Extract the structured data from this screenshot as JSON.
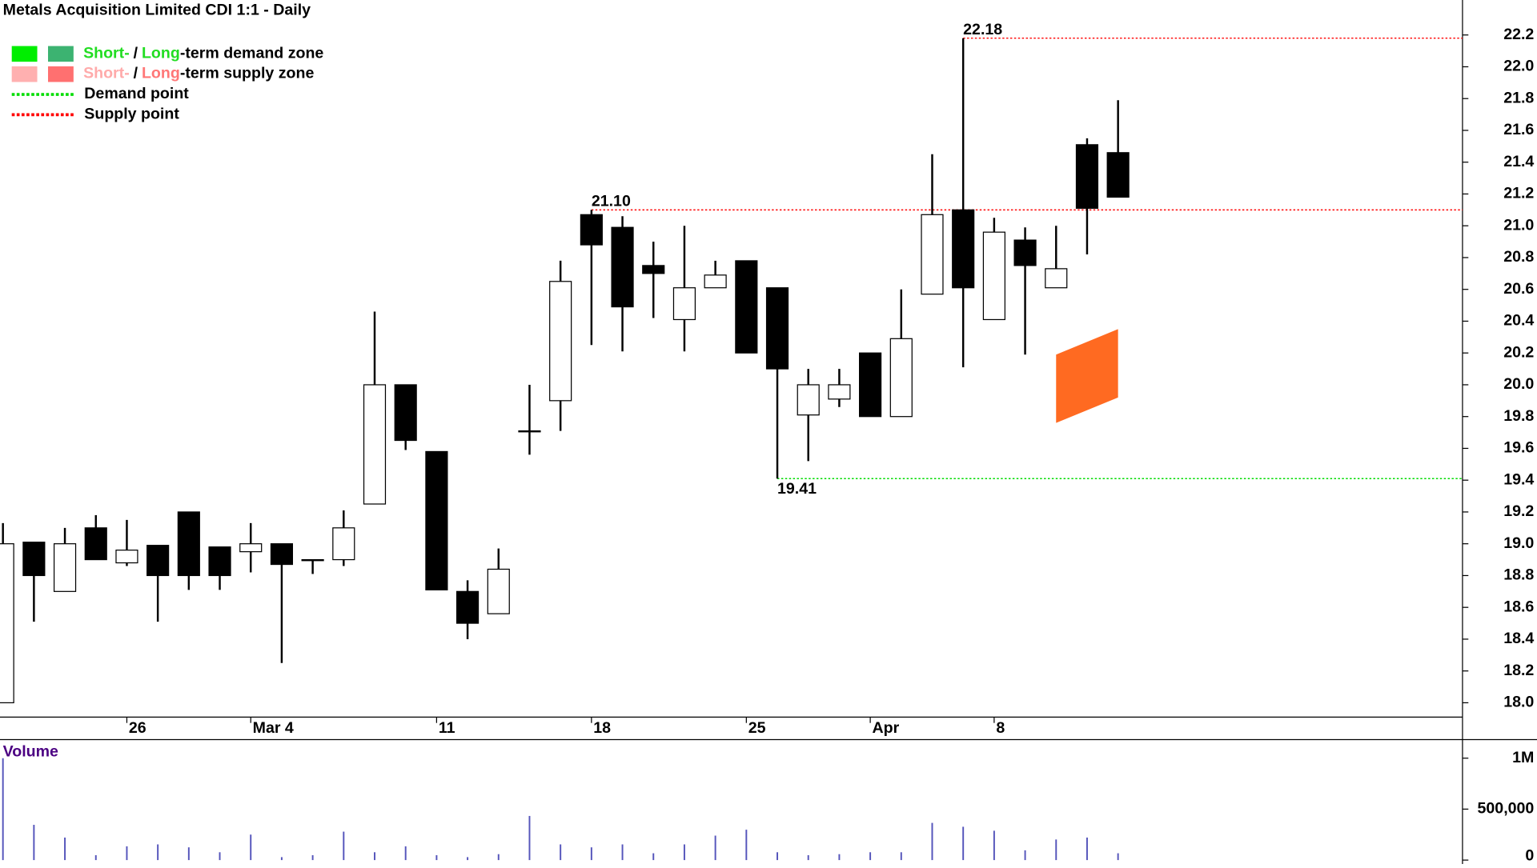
{
  "chart_data": {
    "type": "candlestick",
    "title": "Metals Acquisition Limited CDI 1:1 - Daily",
    "categories": [
      null,
      null,
      null,
      null,
      "26",
      null,
      null,
      null,
      "Mar 4",
      null,
      null,
      null,
      null,
      null,
      "11",
      null,
      null,
      null,
      null,
      "18",
      null,
      null,
      null,
      null,
      "25",
      null,
      null,
      null,
      "Apr",
      null,
      null,
      null,
      "8",
      null,
      null,
      null,
      null
    ],
    "open": [
      18.0,
      19.01,
      18.7,
      19.1,
      18.88,
      18.99,
      19.2,
      18.98,
      18.95,
      19.0,
      18.9,
      18.9,
      19.25,
      20.0,
      19.58,
      18.7,
      18.56,
      19.71,
      19.9,
      21.07,
      20.99,
      20.75,
      20.41,
      20.61,
      20.78,
      20.61,
      19.81,
      19.91,
      20.2,
      19.8,
      20.57,
      21.1,
      20.41,
      20.91,
      20.61,
      21.51,
      21.46
    ],
    "high": [
      19.13,
      19.01,
      19.1,
      19.18,
      19.15,
      18.99,
      19.2,
      18.98,
      19.13,
      19.0,
      18.9,
      19.21,
      20.46,
      20.0,
      19.58,
      18.77,
      18.97,
      20.0,
      20.78,
      21.1,
      21.06,
      20.9,
      21.0,
      20.78,
      20.78,
      20.61,
      20.1,
      20.1,
      20.2,
      20.6,
      21.45,
      22.18,
      21.05,
      20.99,
      21.0,
      21.55,
      21.79
    ],
    "low": [
      18.0,
      18.51,
      18.7,
      18.9,
      18.86,
      18.51,
      18.71,
      18.71,
      18.82,
      18.25,
      18.81,
      18.86,
      19.25,
      19.59,
      18.71,
      18.4,
      18.56,
      19.56,
      19.71,
      20.25,
      20.21,
      20.42,
      20.21,
      20.61,
      20.2,
      19.41,
      19.52,
      19.86,
      19.8,
      19.8,
      20.57,
      20.11,
      20.41,
      20.19,
      20.61,
      20.82,
      21.18
    ],
    "close": [
      19.0,
      18.8,
      19.0,
      18.9,
      18.96,
      18.8,
      18.8,
      18.8,
      19.0,
      18.87,
      18.9,
      19.1,
      20.0,
      19.65,
      18.71,
      18.5,
      18.84,
      19.71,
      20.65,
      20.88,
      20.49,
      20.7,
      20.61,
      20.69,
      20.2,
      20.1,
      20.0,
      20.0,
      19.8,
      20.29,
      21.07,
      20.61,
      20.96,
      20.75,
      20.73,
      21.11,
      21.18
    ],
    "ylim": [
      17.91,
      22.42
    ],
    "yticks": [
      {
        "value": 18.0,
        "label": "18.0"
      },
      18.2,
      18.4,
      18.6,
      18.8,
      {
        "value": 19.0,
        "label": "19.0"
      },
      19.2,
      19.4,
      19.6,
      19.8,
      {
        "value": 20.0,
        "label": "20.0"
      },
      20.2,
      20.4,
      20.6,
      20.8,
      {
        "value": 21.0,
        "label": "21.0"
      },
      21.2,
      21.4,
      21.6,
      21.8,
      {
        "value": 22.0,
        "label": "22.0"
      },
      22.2
    ],
    "levels": [
      {
        "text": "22.18",
        "value": 22.18,
        "color": "#ff0000"
      },
      {
        "text": "21.10",
        "value": 21.1,
        "color": "#ff0000"
      },
      {
        "text": "19.41",
        "value": 19.41,
        "color": "#00dd00"
      }
    ],
    "zones": [
      {
        "color": "#ff6a21",
        "points": [
          [
            34,
            20.19
          ],
          [
            36,
            20.35
          ],
          [
            36,
            19.92
          ],
          [
            34,
            19.76
          ]
        ]
      }
    ],
    "legend": [
      {
        "swatches": [
          "#00ee00",
          "#3cb371"
        ],
        "parts": [
          {
            "text": "Short-",
            "color": "#22dd22"
          },
          {
            "text": "/",
            "color": "#000000"
          },
          {
            "text": "Long",
            "color": "#22dd22"
          },
          {
            "text": "-term demand zone",
            "color": "#000000"
          }
        ]
      },
      {
        "swatches": [
          "#ffb0b0",
          "#ff7070"
        ],
        "parts": [
          {
            "text": "Short-",
            "color": "#ffaaaa"
          },
          {
            "text": "/",
            "color": "#000000"
          },
          {
            "text": "Long",
            "color": "#ff7777"
          },
          {
            "text": "-term supply zone",
            "color": "#000000"
          }
        ]
      },
      {
        "line": "#00dd00",
        "parts": [
          {
            "text": "Demand point",
            "color": "#000000"
          }
        ]
      },
      {
        "line": "#ff0000",
        "parts": [
          {
            "text": "Supply point",
            "color": "#000000"
          }
        ]
      }
    ],
    "volume": {
      "title": "Volume",
      "color": "#5555bb",
      "values": [
        1000000,
        346000,
        221000,
        48000,
        135000,
        154000,
        125000,
        77000,
        250000,
        29000,
        48000,
        279000,
        77000,
        135000,
        48000,
        29000,
        58000,
        433000,
        154000,
        125000,
        154000,
        67000,
        154000,
        240000,
        298000,
        77000,
        48000,
        58000,
        77000,
        77000,
        365000,
        327000,
        288000,
        96000,
        202000,
        221000,
        67000
      ],
      "ylim": [
        0,
        1163000
      ],
      "yticks": [
        0,
        {
          "value": 500000,
          "label": "500,000"
        },
        {
          "value": 1000000,
          "label": "1M"
        }
      ]
    }
  }
}
